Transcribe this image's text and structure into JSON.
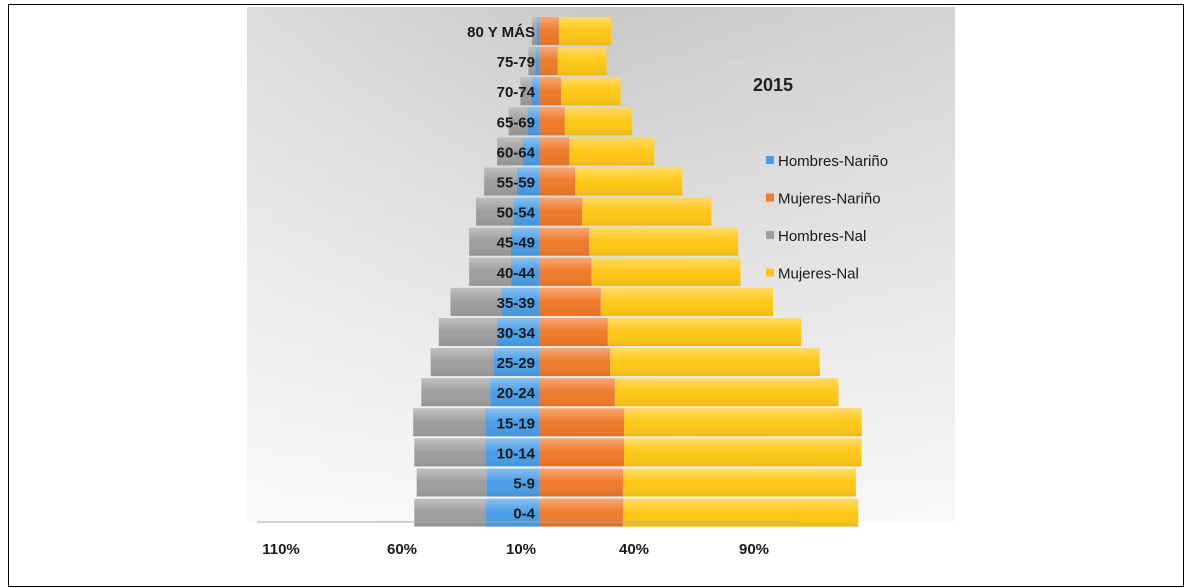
{
  "chart_data": {
    "type": "bar",
    "title": "2015",
    "categories": [
      "80 Y MÁS",
      "75-79",
      "70-74",
      "65-69",
      "60-64",
      "55-59",
      "50-54",
      "45-49",
      "40-44",
      "35-39",
      "30-34",
      "25-29",
      "20-24",
      "15-19",
      "10-14",
      "5-9",
      "0-4"
    ],
    "series": [
      {
        "name": "Hombres-Nariño",
        "color": "#4a9ee8",
        "values": [
          1,
          1.5,
          3,
          5,
          7,
          9.5,
          11,
          12,
          12,
          16,
          18,
          19.5,
          21,
          23,
          23,
          22.5,
          23
        ]
      },
      {
        "name": "Mujeres-Nariño",
        "color": "#f07a2a",
        "values": [
          8.5,
          8,
          9.5,
          11,
          13,
          15.5,
          18.5,
          21.5,
          22.5,
          26.5,
          29.5,
          30.5,
          32.5,
          36.5,
          36.5,
          36,
          36
        ]
      },
      {
        "name": "Hombres-Nal",
        "color": "#9e9e9e",
        "values": [
          2,
          3,
          5,
          8,
          11,
          14,
          16,
          18,
          18,
          22,
          25,
          27,
          29.5,
          31,
          30.5,
          30,
          30.5
        ]
      },
      {
        "name": "Mujeres-Nal",
        "color": "#ffc816",
        "values": [
          22.5,
          21,
          25.5,
          29,
          36.5,
          46,
          55.5,
          64,
          64,
          74,
          83,
          90,
          96,
          102,
          102,
          100,
          101
        ]
      }
    ],
    "x_tick_labels": [
      "110%",
      "60%",
      "10%",
      "40%",
      "90%"
    ],
    "legend_position": "right"
  }
}
